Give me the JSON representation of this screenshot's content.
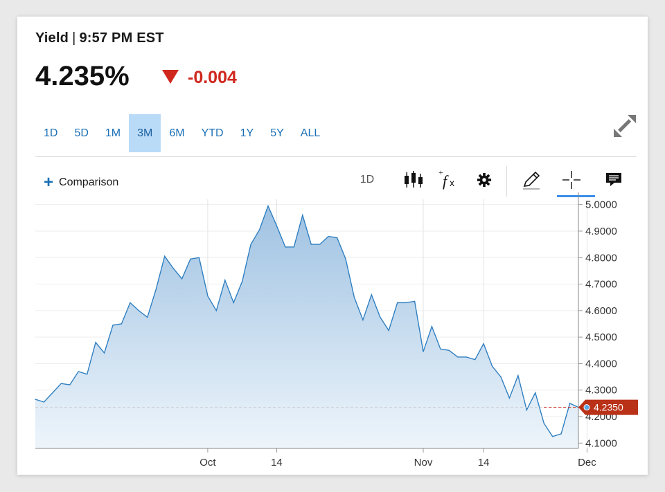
{
  "header": {
    "name": "Yield",
    "time": "9:57 PM EST",
    "price": "4.235%",
    "change": "-0.004"
  },
  "ranges": [
    {
      "label": "1D",
      "active": false
    },
    {
      "label": "5D",
      "active": false
    },
    {
      "label": "1M",
      "active": false
    },
    {
      "label": "3M",
      "active": true
    },
    {
      "label": "6M",
      "active": false
    },
    {
      "label": "YTD",
      "active": false
    },
    {
      "label": "1Y",
      "active": false
    },
    {
      "label": "5Y",
      "active": false
    },
    {
      "label": "ALL",
      "active": false
    }
  ],
  "toolbar": {
    "comparison_label": "Comparison",
    "interval_label": "1D"
  },
  "colors": {
    "accent": "#1a6fb5",
    "down": "#d0271d",
    "line": "#2f7fc1",
    "area_top": "#9fc2e2",
    "area_bottom": "#eef5fb",
    "active_range_bg": "#b9dbf8"
  },
  "icons": [
    "plus-icon",
    "candlestick-icon",
    "fx-icon",
    "gear-icon",
    "pencil-icon",
    "crosshair-icon",
    "comment-icon",
    "expand-icon",
    "down-arrow-icon"
  ],
  "chart_data": {
    "type": "area",
    "title": "",
    "xlabel": "",
    "ylabel": "",
    "x_tick_labels": [
      "Oct",
      "14",
      "Nov",
      "14",
      "Dec"
    ],
    "x_tick_indices": [
      20,
      28,
      45,
      52,
      64
    ],
    "y_ticks": [
      4.1,
      4.2,
      4.3,
      4.4,
      4.5,
      4.6,
      4.7,
      4.8,
      4.9,
      5.0
    ],
    "y_tick_labels": [
      "4.1000",
      "4.2000",
      "4.3000",
      "4.4000",
      "4.5000",
      "4.6000",
      "4.7000",
      "4.8000",
      "4.9000",
      "5.0000"
    ],
    "ylim": [
      4.08,
      5.02
    ],
    "last_value_label": "4.2350",
    "last_value": 4.235,
    "grid": true,
    "series": [
      {
        "values": [
          4.265,
          4.255,
          4.29,
          4.325,
          4.32,
          4.37,
          4.36,
          4.48,
          4.44,
          4.545,
          4.55,
          4.63,
          4.6,
          4.575,
          4.68,
          4.805,
          4.76,
          4.72,
          4.795,
          4.8,
          4.655,
          4.6,
          4.715,
          4.63,
          4.71,
          4.85,
          4.905,
          4.995,
          4.92,
          4.84,
          4.84,
          4.96,
          4.85,
          4.85,
          4.88,
          4.875,
          4.795,
          4.65,
          4.565,
          4.66,
          4.575,
          4.525,
          4.63,
          4.63,
          4.635,
          4.445,
          4.54,
          4.455,
          4.45,
          4.425,
          4.425,
          4.415,
          4.475,
          4.39,
          4.35,
          4.27,
          4.355,
          4.225,
          4.29,
          4.175,
          4.125,
          4.135,
          4.25,
          4.235
        ]
      }
    ]
  }
}
